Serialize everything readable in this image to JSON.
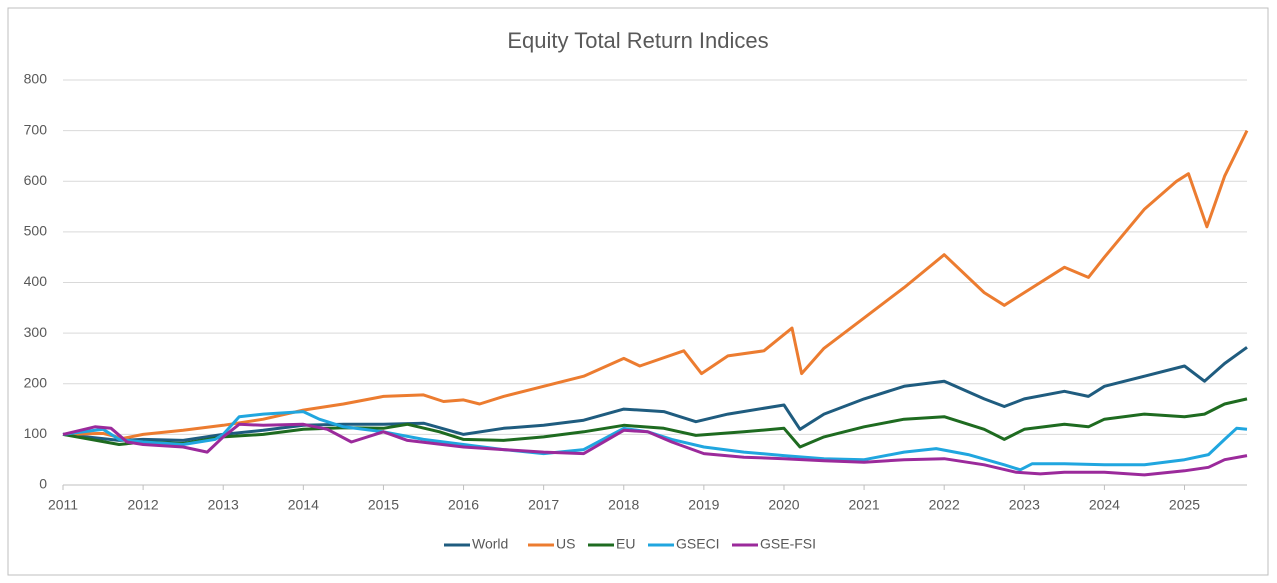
{
  "chart_data": {
    "type": "line",
    "title": "Equity Total Return Indices",
    "xlim": [
      2011,
      2025.78
    ],
    "xticks": [
      2011,
      2012,
      2013,
      2014,
      2015,
      2016,
      2017,
      2018,
      2019,
      2020,
      2021,
      2022,
      2023,
      2024,
      2025
    ],
    "ylim": [
      0,
      800
    ],
    "yticks": [
      0,
      100,
      200,
      300,
      400,
      500,
      600,
      700,
      800
    ],
    "grid": true,
    "legend": "bottom",
    "series": [
      {
        "name": "World",
        "color": "#1f5c7f",
        "x": [
          2011,
          2011.7,
          2012,
          2012.5,
          2013,
          2013.5,
          2014,
          2014.5,
          2015,
          2015.5,
          2016,
          2016.5,
          2017,
          2017.5,
          2018,
          2018.5,
          2018.9,
          2019.3,
          2020,
          2020.2,
          2020.5,
          2021,
          2021.5,
          2022,
          2022.5,
          2022.75,
          2023,
          2023.5,
          2023.8,
          2024,
          2024.5,
          2025,
          2025.25,
          2025.5,
          2025.78
        ],
        "values": [
          100,
          88,
          90,
          88,
          100,
          108,
          118,
          120,
          120,
          122,
          100,
          112,
          118,
          128,
          150,
          145,
          125,
          140,
          158,
          110,
          140,
          170,
          195,
          205,
          170,
          155,
          170,
          185,
          175,
          195,
          215,
          235,
          205,
          240,
          272
        ]
      },
      {
        "name": "US",
        "color": "#ec7c30",
        "x": [
          2011,
          2011.5,
          2011.75,
          2012,
          2012.5,
          2013,
          2013.5,
          2014,
          2014.5,
          2015,
          2015.5,
          2015.75,
          2016,
          2016.2,
          2016.5,
          2017,
          2017.5,
          2018,
          2018.2,
          2018.75,
          2018.97,
          2019.3,
          2019.75,
          2020.1,
          2020.22,
          2020.5,
          2021,
          2021.5,
          2022,
          2022.5,
          2022.75,
          2023,
          2023.5,
          2023.8,
          2024,
          2024.5,
          2024.9,
          2025.05,
          2025.28,
          2025.5,
          2025.78
        ],
        "values": [
          100,
          102,
          92,
          100,
          108,
          118,
          130,
          148,
          160,
          175,
          178,
          165,
          168,
          160,
          175,
          195,
          215,
          250,
          235,
          265,
          220,
          255,
          265,
          310,
          220,
          270,
          330,
          390,
          455,
          380,
          355,
          380,
          430,
          410,
          450,
          545,
          600,
          615,
          510,
          610,
          700
        ]
      },
      {
        "name": "EU",
        "color": "#1e6b20",
        "x": [
          2011,
          2011.7,
          2012,
          2012.5,
          2013,
          2013.5,
          2014,
          2014.5,
          2015,
          2015.3,
          2015.7,
          2016,
          2016.5,
          2017,
          2017.5,
          2018,
          2018.5,
          2018.9,
          2019.5,
          2020,
          2020.2,
          2020.5,
          2021,
          2021.5,
          2022,
          2022.5,
          2022.75,
          2023,
          2023.5,
          2023.8,
          2024,
          2024.5,
          2025,
          2025.25,
          2025.5,
          2025.78
        ],
        "values": [
          100,
          80,
          85,
          82,
          95,
          100,
          110,
          113,
          112,
          120,
          105,
          90,
          88,
          95,
          105,
          118,
          112,
          98,
          105,
          112,
          75,
          95,
          115,
          130,
          135,
          110,
          90,
          110,
          120,
          115,
          130,
          140,
          135,
          140,
          160,
          170
        ]
      },
      {
        "name": "GSECI",
        "color": "#20a6df",
        "x": [
          2011,
          2011.5,
          2011.7,
          2012,
          2012.5,
          2012.9,
          2013,
          2013.2,
          2013.5,
          2014,
          2014.2,
          2014.5,
          2015,
          2015.5,
          2016,
          2016.5,
          2017,
          2017.5,
          2018,
          2018.3,
          2018.6,
          2019,
          2019.5,
          2020,
          2020.5,
          2021,
          2021.5,
          2021.9,
          2022.3,
          2022.75,
          2022.95,
          2023.1,
          2023.5,
          2024,
          2024.5,
          2025,
          2025.3,
          2025.5,
          2025.65,
          2025.78
        ],
        "values": [
          100,
          110,
          90,
          85,
          80,
          90,
          100,
          135,
          140,
          145,
          130,
          115,
          105,
          90,
          80,
          70,
          62,
          70,
          112,
          105,
          90,
          75,
          65,
          58,
          52,
          50,
          65,
          72,
          60,
          40,
          30,
          42,
          42,
          40,
          40,
          50,
          60,
          90,
          112,
          110
        ]
      },
      {
        "name": "GSE-FSI",
        "color": "#9b2a9b",
        "x": [
          2011,
          2011.4,
          2011.6,
          2011.8,
          2012,
          2012.5,
          2012.8,
          2013,
          2013.2,
          2013.5,
          2014,
          2014.3,
          2014.6,
          2015,
          2015.3,
          2016,
          2016.5,
          2017,
          2017.5,
          2018,
          2018.3,
          2018.6,
          2019,
          2019.5,
          2020,
          2020.5,
          2021,
          2021.5,
          2022,
          2022.5,
          2022.9,
          2023.2,
          2023.5,
          2024,
          2024.5,
          2025,
          2025.3,
          2025.5,
          2025.78
        ],
        "values": [
          100,
          115,
          112,
          85,
          80,
          75,
          65,
          95,
          120,
          118,
          120,
          110,
          85,
          105,
          88,
          75,
          70,
          65,
          62,
          108,
          105,
          85,
          62,
          55,
          52,
          48,
          45,
          50,
          52,
          40,
          25,
          22,
          25,
          25,
          20,
          28,
          35,
          50,
          58
        ]
      }
    ]
  }
}
